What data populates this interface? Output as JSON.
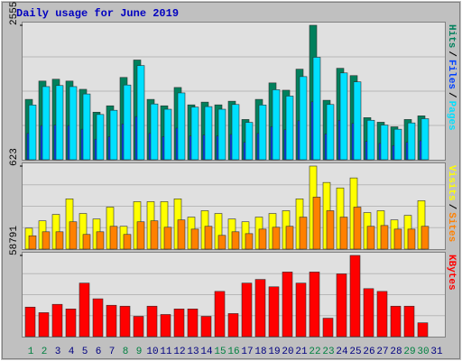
{
  "chart_data": [
    {
      "type": "bar",
      "title": "Daily usage for June 2019",
      "ylim": [
        0,
        2555
      ],
      "yticks": [
        2555
      ],
      "legend_separator": "/",
      "series": [
        {
          "name": "Hits",
          "color": "#00805c",
          "values": [
            1147,
            1495,
            1530,
            1495,
            1338,
            904,
            1025,
            1564,
            1895,
            1147,
            1025,
            1373,
            1043,
            1095,
            1043,
            1112,
            765,
            1147,
            1460,
            1321,
            1721,
            2555,
            1130,
            1738,
            1599,
            800,
            713,
            626,
            765,
            834,
            null
          ]
        },
        {
          "name": "Files",
          "color": "#0040ff",
          "values": [
            500,
            650,
            660,
            650,
            580,
            390,
            440,
            680,
            820,
            500,
            440,
            600,
            450,
            470,
            450,
            480,
            330,
            500,
            630,
            570,
            740,
            1100,
            490,
            750,
            690,
            350,
            310,
            270,
            330,
            360,
            null
          ]
        },
        {
          "name": "Pages",
          "color": "#00e0ff",
          "values": [
            1040,
            1390,
            1410,
            1390,
            1250,
            860,
            940,
            1420,
            1790,
            1060,
            960,
            1270,
            1000,
            1010,
            960,
            1050,
            710,
            1040,
            1330,
            1210,
            1580,
            1947,
            1050,
            1650,
            1480,
            750,
            660,
            580,
            700,
            780,
            null
          ]
        }
      ]
    },
    {
      "type": "bar",
      "ylim": [
        0,
        623
      ],
      "yticks": [
        623
      ],
      "legend_separator": "/",
      "series": [
        {
          "name": "Visits",
          "color": "#ffff00",
          "values": [
            157,
            212,
            260,
            377,
            267,
            226,
            315,
            171,
            356,
            356,
            356,
            377,
            240,
            288,
            267,
            226,
            205,
            240,
            267,
            288,
            377,
            623,
            500,
            459,
            534,
            274,
            288,
            219,
            253,
            363,
            null
          ]
        },
        {
          "name": "Sites",
          "color": "#ff8000",
          "values": [
            100,
            130,
            130,
            205,
            110,
            130,
            171,
            110,
            205,
            212,
            164,
            219,
            150,
            171,
            103,
            130,
            116,
            150,
            164,
            171,
            240,
            390,
            288,
            240,
            315,
            171,
            177,
            150,
            150,
            171,
            null
          ]
        }
      ]
    },
    {
      "type": "bar",
      "ylim": [
        0,
        58791
      ],
      "yticks": [
        58791
      ],
      "categories": [
        "1",
        "2",
        "3",
        "4",
        "5",
        "6",
        "7",
        "8",
        "9",
        "10",
        "11",
        "12",
        "13",
        "14",
        "15",
        "16",
        "17",
        "18",
        "19",
        "20",
        "21",
        "22",
        "23",
        "24",
        "25",
        "26",
        "27",
        "28",
        "29",
        "30",
        "31"
      ],
      "category_colors": [
        "#008040",
        "#008040",
        "#000080",
        "#000080",
        "#000080",
        "#000080",
        "#000080",
        "#008040",
        "#008040",
        "#000080",
        "#000080",
        "#000080",
        "#000080",
        "#000080",
        "#008040",
        "#008040",
        "#000080",
        "#000080",
        "#000080",
        "#000080",
        "#000080",
        "#008040",
        "#008040",
        "#000080",
        "#000080",
        "#000080",
        "#000080",
        "#000080",
        "#008040",
        "#008040",
        "#000080"
      ],
      "series": [
        {
          "name": "KBytes",
          "color": "#ff0000",
          "values": [
            21380,
            17370,
            23380,
            20040,
            38750,
            27390,
            22710,
            22050,
            14700,
            22050,
            16030,
            20040,
            20040,
            14700,
            32740,
            16700,
            38750,
            41420,
            36080,
            46770,
            38750,
            46770,
            13360,
            45440,
            58791,
            34750,
            32740,
            22050,
            22050,
            10020,
            null
          ]
        }
      ]
    }
  ]
}
